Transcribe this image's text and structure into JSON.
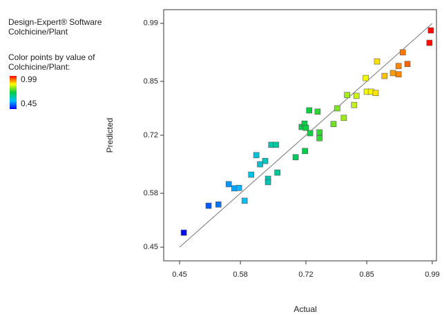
{
  "chart_data": {
    "type": "scatter",
    "info": [
      "Design-Expert® Software",
      "Colchicine/Plant"
    ],
    "color_legend": {
      "title": [
        "Color points by value of",
        "Colchicine/Plant:"
      ],
      "high": 0.99,
      "low": 0.45,
      "high_color": "#ff0000",
      "low_color": "#0000ff"
    },
    "colormap": [
      "#0000ff",
      "#00bfff",
      "#00cc44",
      "#ffff00",
      "#ff0000"
    ],
    "x_label": "Actual",
    "y_label": "Predicted",
    "xlim": [
      0.416,
      0.999
    ],
    "ylim": [
      0.417,
      1.023
    ],
    "xticks": [
      0.45,
      0.58,
      0.72,
      0.85,
      0.99
    ],
    "yticks": [
      0.45,
      0.58,
      0.72,
      0.85,
      0.99
    ],
    "fit_line": {
      "x": [
        0.45,
        0.99
      ],
      "y": [
        0.45,
        0.99
      ],
      "color": "#777777"
    },
    "x": [
      0.459,
      0.512,
      0.533,
      0.555,
      0.567,
      0.577,
      0.589,
      0.603,
      0.614,
      0.622,
      0.633,
      0.639,
      0.639,
      0.646,
      0.656,
      0.659,
      0.698,
      0.711,
      0.717,
      0.72,
      0.718,
      0.729,
      0.727,
      0.745,
      0.749,
      0.749,
      0.779,
      0.787,
      0.801,
      0.808,
      0.823,
      0.828,
      0.848,
      0.85,
      0.859,
      0.869,
      0.872,
      0.888,
      0.906,
      0.918,
      0.918,
      0.927,
      0.937,
      0.984,
      0.987
    ],
    "y": [
      0.485,
      0.55,
      0.553,
      0.602,
      0.592,
      0.593,
      0.562,
      0.625,
      0.672,
      0.65,
      0.658,
      0.615,
      0.607,
      0.697,
      0.697,
      0.63,
      0.667,
      0.74,
      0.748,
      0.738,
      0.682,
      0.725,
      0.78,
      0.777,
      0.727,
      0.713,
      0.747,
      0.785,
      0.762,
      0.817,
      0.793,
      0.815,
      0.858,
      0.825,
      0.825,
      0.822,
      0.898,
      0.863,
      0.87,
      0.867,
      0.887,
      0.92,
      0.892,
      0.943,
      0.973
    ]
  }
}
